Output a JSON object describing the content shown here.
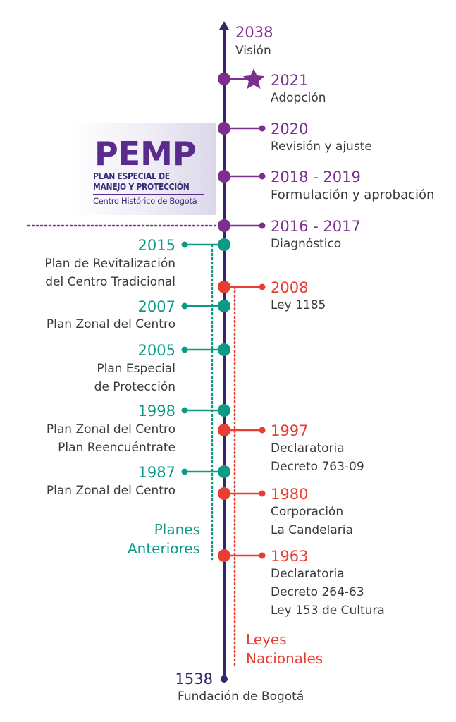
{
  "colors": {
    "axis": "#37246b",
    "vision": "#7b2f8e",
    "previous_plans": "#0b9a86",
    "national_laws": "#ea3d31"
  },
  "logo": {
    "title": "PEMP",
    "subtitle_line1": "PLAN ESPECIAL DE",
    "subtitle_line2": "MANEJO Y PROTECCIÓN",
    "subtitle_line3": "Centro Histórico de Bogotá"
  },
  "events_top": [
    {
      "year": "2038",
      "label": "Visión"
    },
    {
      "year": "2021",
      "label": "Adopción",
      "icon": "star-icon"
    },
    {
      "year": "2020",
      "label": "Revisión y ajuste"
    },
    {
      "year": "2018 - 2019",
      "label": "Formulación y aprobación"
    },
    {
      "year": "2016 - 2017",
      "label": "Diagnóstico"
    }
  ],
  "previous_plans": [
    {
      "year": "2015",
      "lines": [
        "Plan de Revitalización",
        "del Centro Tradicional"
      ]
    },
    {
      "year": "2007",
      "lines": [
        "Plan Zonal del Centro"
      ]
    },
    {
      "year": "2005",
      "lines": [
        "Plan Especial",
        "de Protección"
      ]
    },
    {
      "year": "1998",
      "lines": [
        "Plan Zonal del Centro",
        "Plan Reencuéntrate"
      ]
    },
    {
      "year": "1987",
      "lines": [
        "Plan Zonal del Centro"
      ]
    }
  ],
  "national_laws": [
    {
      "year": "2008",
      "lines": [
        "Ley 1185"
      ]
    },
    {
      "year": "1997",
      "lines": [
        "Declaratoria",
        "Decreto 763-09"
      ]
    },
    {
      "year": "1980",
      "lines": [
        "Corporación",
        "La Candelaria"
      ]
    },
    {
      "year": "1963",
      "lines": [
        "Declaratoria",
        "Decreto 264-63",
        "Ley 153 de Cultura"
      ]
    }
  ],
  "group_labels": {
    "previous_plans_line1": "Planes",
    "previous_plans_line2": "Anteriores",
    "national_laws_line1": "Leyes",
    "national_laws_line2": "Nacionales"
  },
  "origin": {
    "year": "1538",
    "label": "Fundación de Bogotá"
  }
}
